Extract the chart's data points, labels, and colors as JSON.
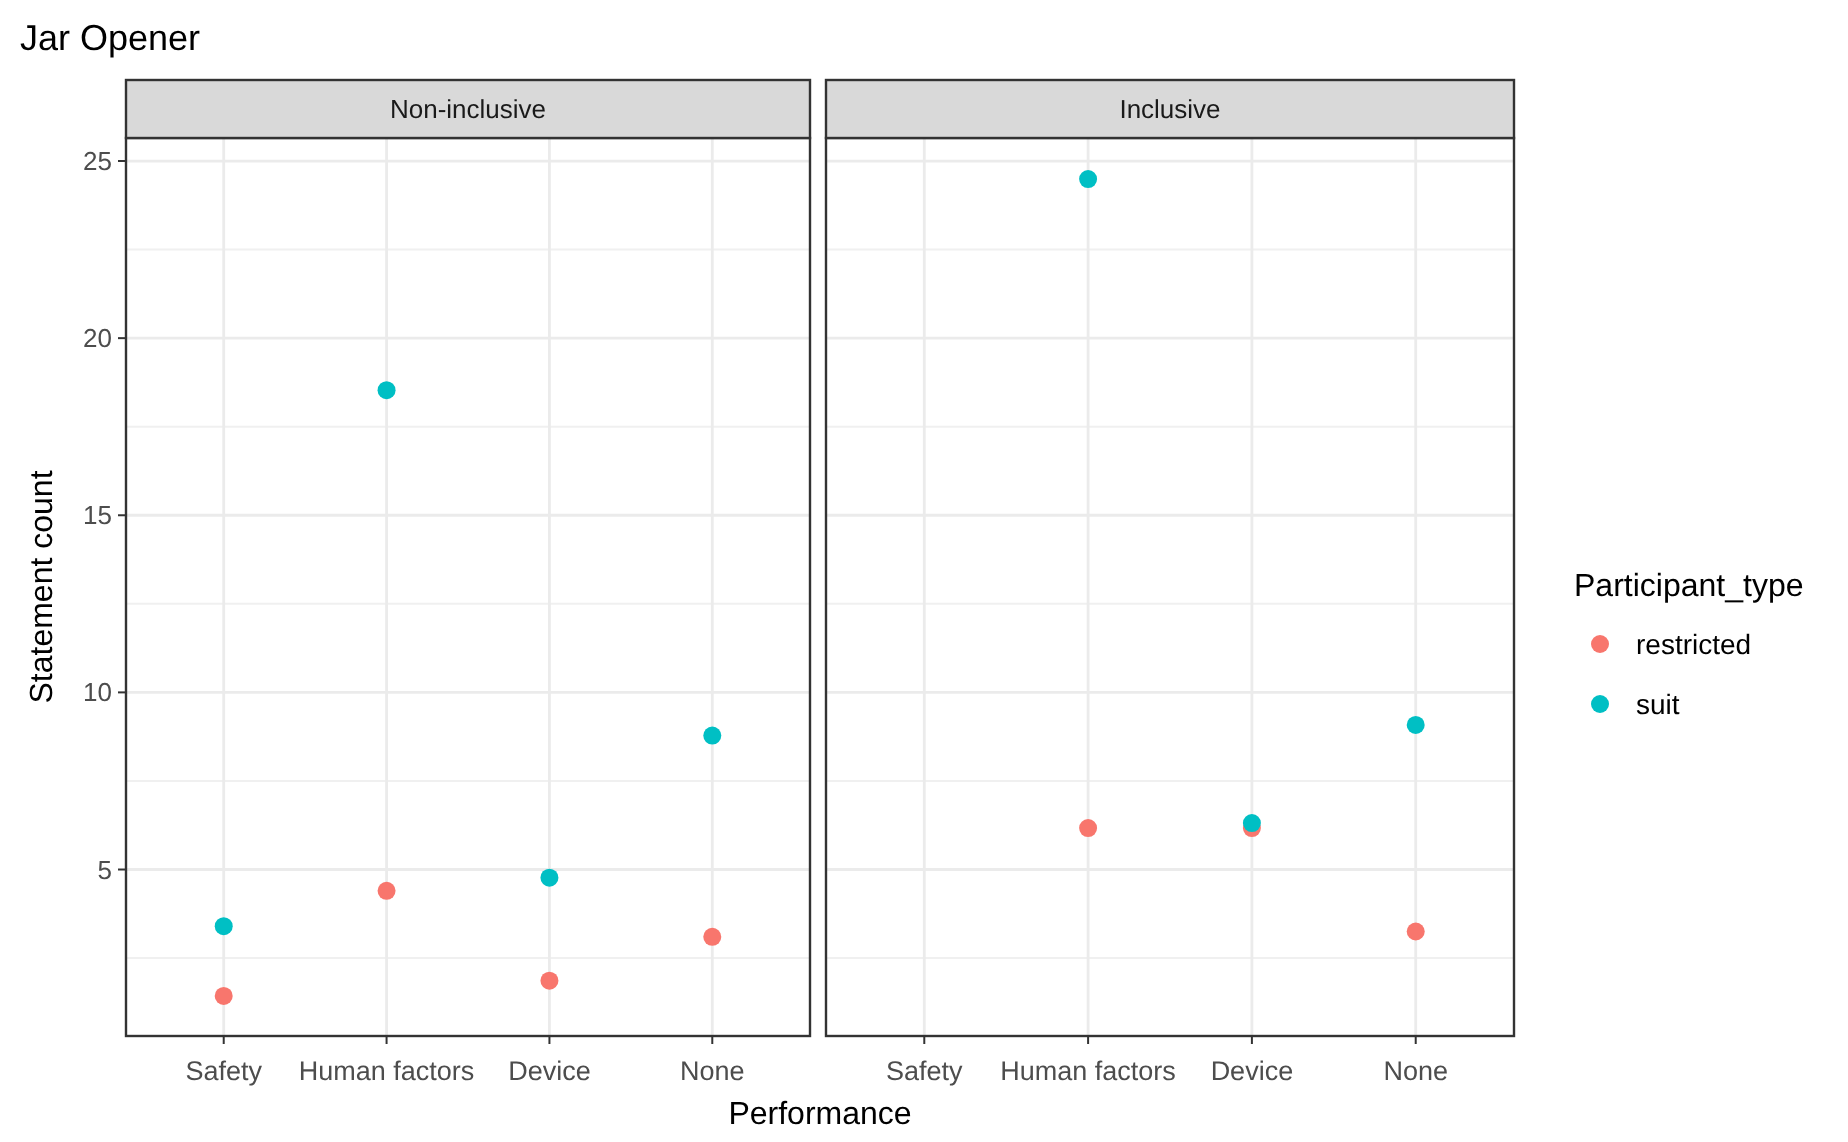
{
  "chart_data": [
    {
      "type": "scatter",
      "title": "Jar Opener",
      "subtitle": "Non-inclusive",
      "xlabel": "Performance",
      "ylabel": "Statement count",
      "categories": [
        "Safety",
        "Human factors",
        "Device",
        "None"
      ],
      "ylim": [
        0.3,
        25.65
      ],
      "yticks": [
        5,
        10,
        15,
        20,
        25
      ],
      "grid": true,
      "marker": "circle",
      "legend": false,
      "series": [
        {
          "color": "#f8766d",
          "values": [
            1.43,
            4.4,
            1.86,
            3.1
          ]
        },
        {
          "color": "#00bfc4",
          "values": [
            3.4,
            18.53,
            4.77,
            8.78
          ]
        }
      ]
    },
    {
      "type": "scatter",
      "subtitle": "Inclusive",
      "categories": [
        "Safety",
        "Human factors",
        "Device",
        "None"
      ],
      "ylim": [
        0.3,
        25.65
      ],
      "yticks": [
        5,
        10,
        15,
        20,
        25
      ],
      "grid": true,
      "marker": "circle",
      "legend": "right",
      "legend_title": "Participant_type",
      "tick_labels": "x",
      "series": [
        {
          "name": "restricted",
          "color": "#f8766d",
          "values": [
            null,
            6.17,
            6.17,
            3.25
          ]
        },
        {
          "name": "suit",
          "color": "#00bfc4",
          "values": [
            null,
            24.49,
            6.31,
            9.08
          ]
        }
      ]
    }
  ]
}
